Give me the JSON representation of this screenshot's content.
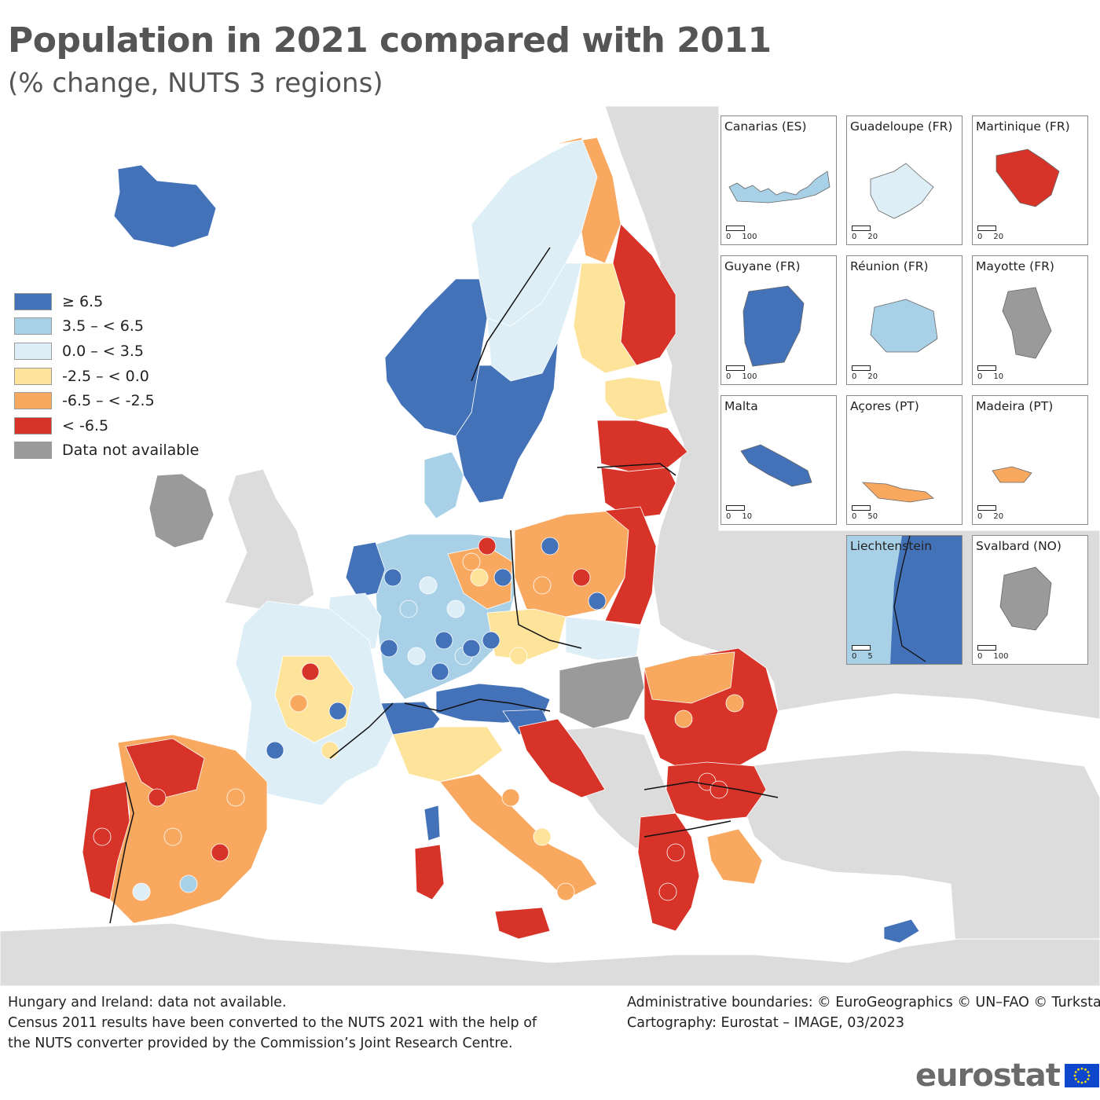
{
  "title": "Population in 2021 compared with 2011",
  "subtitle": "(% change, NUTS 3 regions)",
  "colors": {
    "c1": "#4472b8",
    "c2": "#a8d1e7",
    "c3": "#ddeef7",
    "c4": "#fde49a",
    "c5": "#f9a860",
    "c6": "#d73329",
    "na": "#9a9a9a",
    "nonEU": "#dcdcdc",
    "sea": "#ffffff"
  },
  "legend": [
    {
      "label": "≥ 6.5",
      "color": "#4472b8"
    },
    {
      "label": "3.5 – < 6.5",
      "color": "#a8d1e7"
    },
    {
      "label": "0.0 – < 3.5",
      "color": "#ddeef7"
    },
    {
      "label": "-2.5 – < 0.0",
      "color": "#fde49a"
    },
    {
      "label": "-6.5 – < -2.5",
      "color": "#f9a860"
    },
    {
      "label": "< -6.5",
      "color": "#d73329"
    },
    {
      "label": "Data not available",
      "color": "#9a9a9a"
    }
  ],
  "insets": [
    {
      "title": "Canarias (ES)",
      "scale": [
        "0",
        "100"
      ],
      "color": "#a8d1e7"
    },
    {
      "title": "Guadeloupe (FR)",
      "scale": [
        "0",
        "20"
      ],
      "color": "#ddeef7"
    },
    {
      "title": "Martinique (FR)",
      "scale": [
        "0",
        "20"
      ],
      "color": "#d73329"
    },
    {
      "title": "Guyane (FR)",
      "scale": [
        "0",
        "100"
      ],
      "color": "#4472b8"
    },
    {
      "title": "Réunion (FR)",
      "scale": [
        "0",
        "20"
      ],
      "color": "#a8d1e7"
    },
    {
      "title": "Mayotte (FR)",
      "scale": [
        "0",
        "10"
      ],
      "color": "#9a9a9a"
    },
    {
      "title": "Malta",
      "scale": [
        "0",
        "10"
      ],
      "color": "#4472b8"
    },
    {
      "title": "Açores (PT)",
      "scale": [
        "0",
        "50"
      ],
      "color": "#f9a860"
    },
    {
      "title": "Madeira (PT)",
      "scale": [
        "0",
        "20"
      ],
      "color": "#f9a860"
    },
    {
      "title": "Liechtenstein",
      "scale": [
        "0",
        "5"
      ],
      "color": "#4472b8"
    },
    {
      "title": "Svalbard (NO)",
      "scale": [
        "0",
        "100"
      ],
      "color": "#9a9a9a"
    }
  ],
  "footnote_left": [
    "Hungary and Ireland: data not available.",
    "Census 2011 results have been converted to the NUTS 2021 with the help of",
    "the NUTS converter provided by the Commission’s Joint Research Centre."
  ],
  "footnote_right": [
    "Administrative boundaries: © EuroGeographics © UN–FAO © Turkstat",
    "Cartography: Eurostat – IMAGE, 03/2023"
  ],
  "brand": "eurostat",
  "regions": [
    {
      "name": "Iceland",
      "class": "c1"
    },
    {
      "name": "Ireland",
      "class": "na"
    },
    {
      "name": "Hungary",
      "class": "na"
    },
    {
      "name": "Norway north",
      "class": "c3"
    },
    {
      "name": "Norway west",
      "class": "c1"
    },
    {
      "name": "Sweden north",
      "class": "c3"
    },
    {
      "name": "Sweden south",
      "class": "c1"
    },
    {
      "name": "Finland north",
      "class": "c5"
    },
    {
      "name": "Finland east",
      "class": "c6"
    },
    {
      "name": "Finland south",
      "class": "c4"
    },
    {
      "name": "Estonia",
      "class": "c4"
    },
    {
      "name": "Latvia",
      "class": "c6"
    },
    {
      "name": "Lithuania",
      "class": "c6"
    },
    {
      "name": "Poland",
      "class": "c5"
    },
    {
      "name": "Poland east",
      "class": "c6"
    },
    {
      "name": "Germany",
      "class": "c2"
    },
    {
      "name": "Germany east",
      "class": "c5"
    },
    {
      "name": "Denmark",
      "class": "c2"
    },
    {
      "name": "Netherlands",
      "class": "c1"
    },
    {
      "name": "Belgium",
      "class": "c3"
    },
    {
      "name": "Czechia",
      "class": "c4"
    },
    {
      "name": "Slovakia",
      "class": "c3"
    },
    {
      "name": "Austria",
      "class": "c1"
    },
    {
      "name": "Switzerland",
      "class": "c1"
    },
    {
      "name": "France",
      "class": "c3"
    },
    {
      "name": "France central",
      "class": "c4"
    },
    {
      "name": "Spain",
      "class": "c5"
    },
    {
      "name": "Spain north",
      "class": "c6"
    },
    {
      "name": "Portugal",
      "class": "c6"
    },
    {
      "name": "Italy north",
      "class": "c4"
    },
    {
      "name": "Italy south",
      "class": "c5"
    },
    {
      "name": "Sicily",
      "class": "c6"
    },
    {
      "name": "Sardinia",
      "class": "c6"
    },
    {
      "name": "Corsica",
      "class": "c1"
    },
    {
      "name": "Slovenia",
      "class": "c1"
    },
    {
      "name": "Croatia",
      "class": "c6"
    },
    {
      "name": "Romania",
      "class": "c6"
    },
    {
      "name": "Romania north",
      "class": "c5"
    },
    {
      "name": "Bulgaria",
      "class": "c6"
    },
    {
      "name": "Greece",
      "class": "c6"
    },
    {
      "name": "Greece islands",
      "class": "c5"
    },
    {
      "name": "Cyprus",
      "class": "c1"
    }
  ]
}
